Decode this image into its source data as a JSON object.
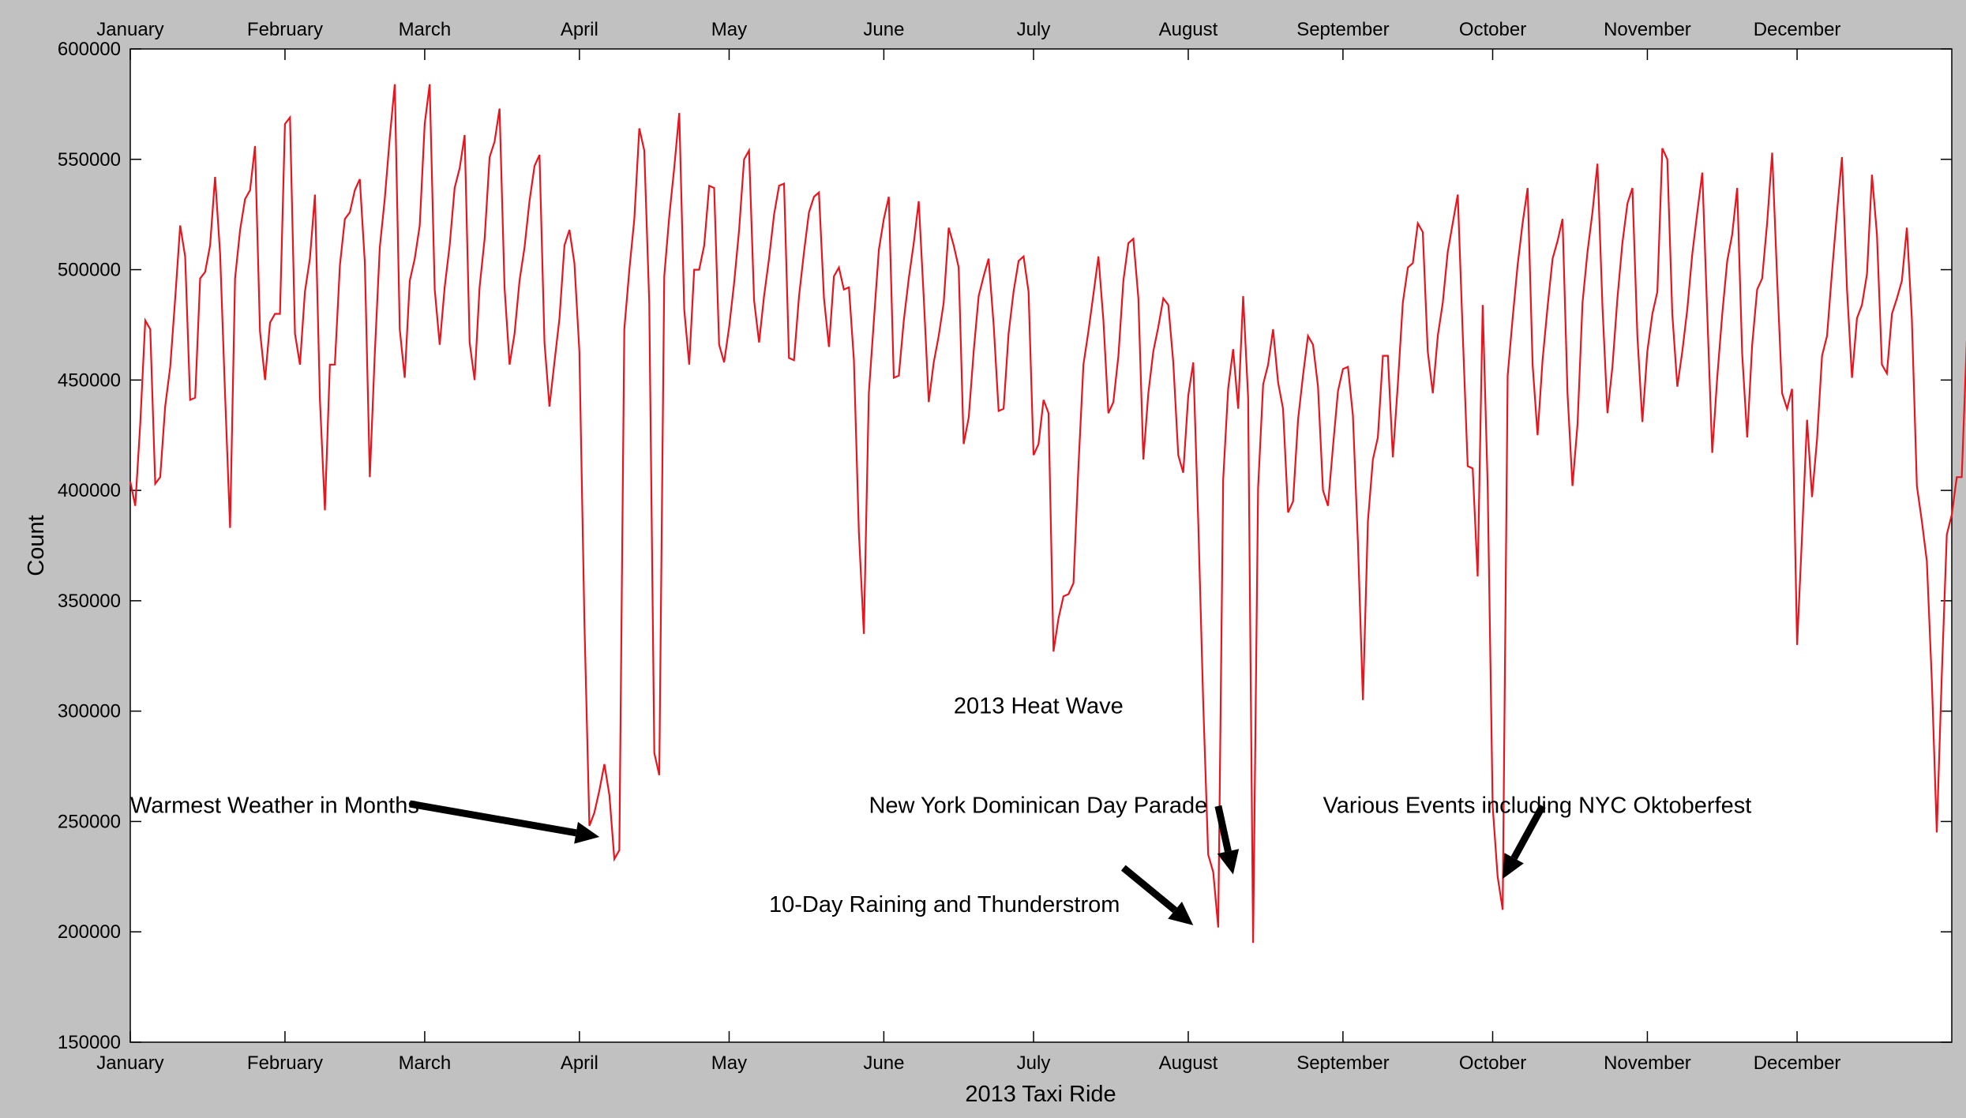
{
  "chart_data": {
    "type": "line",
    "title": "",
    "xlabel": "2013 Taxi Ride",
    "ylabel": "Count",
    "ylim": [
      150000,
      600000
    ],
    "yticks": [
      150000,
      200000,
      250000,
      300000,
      350000,
      400000,
      450000,
      500000,
      550000,
      600000
    ],
    "xlim": [
      1,
      366
    ],
    "months": [
      {
        "label": "January",
        "day": 1
      },
      {
        "label": "February",
        "day": 32
      },
      {
        "label": "March",
        "day": 60
      },
      {
        "label": "April",
        "day": 91
      },
      {
        "label": "May",
        "day": 121
      },
      {
        "label": "June",
        "day": 152
      },
      {
        "label": "July",
        "day": 182
      },
      {
        "label": "August",
        "day": 213
      },
      {
        "label": "September",
        "day": 244
      },
      {
        "label": "October",
        "day": 274
      },
      {
        "label": "November",
        "day": 305
      },
      {
        "label": "December",
        "day": 335
      }
    ],
    "grid": false,
    "series": [
      {
        "name": "",
        "color": "#e8141e",
        "values": [
          404000,
          393000,
          430000,
          477000,
          473000,
          403000,
          406000,
          438000,
          456000,
          487000,
          520000,
          506000,
          441000,
          442000,
          496000,
          499000,
          511000,
          542000,
          507000,
          443000,
          383000,
          496000,
          518000,
          532000,
          536000,
          556000,
          472000,
          450000,
          476000,
          480000,
          480000,
          566000,
          569000,
          471000,
          457000,
          490000,
          505000,
          534000,
          441000,
          391000,
          457000,
          457000,
          502000,
          523000,
          526000,
          536000,
          541000,
          503000,
          406000,
          462000,
          510000,
          532000,
          560000,
          584000,
          473000,
          451000,
          495000,
          505000,
          520000,
          566000,
          584000,
          491000,
          466000,
          492000,
          511000,
          537000,
          546000,
          561000,
          467000,
          450000,
          492000,
          514000,
          551000,
          558000,
          573000,
          492000,
          457000,
          471000,
          495000,
          510000,
          531000,
          547000,
          552000,
          467000,
          438000,
          458000,
          478000,
          511000,
          518000,
          503000,
          463000,
          340000,
          248000,
          254000,
          264000,
          276000,
          262000,
          233000,
          237000,
          473000,
          500000,
          523000,
          564000,
          554000,
          485000,
          281000,
          271000,
          497000,
          524000,
          546000,
          571000,
          482000,
          457000,
          500000,
          500000,
          511000,
          538000,
          537000,
          466000,
          458000,
          474000,
          494000,
          518000,
          550000,
          554000,
          486000,
          467000,
          488000,
          505000,
          525000,
          538000,
          539000,
          460000,
          459000,
          488000,
          508000,
          526000,
          533000,
          535000,
          487000,
          465000,
          497000,
          501000,
          491000,
          492000,
          459000,
          381000,
          335000,
          444000,
          477000,
          509000,
          523000,
          533000,
          451000,
          452000,
          477000,
          496000,
          512000,
          531000,
          487000,
          440000,
          458000,
          470000,
          485000,
          519000,
          511000,
          501000,
          421000,
          433000,
          463000,
          488000,
          497000,
          505000,
          475000,
          436000,
          437000,
          471000,
          490000,
          504000,
          506000,
          490000,
          416000,
          421000,
          441000,
          435000,
          327000,
          342000,
          352000,
          353000,
          358000,
          411000,
          457000,
          472000,
          489000,
          506000,
          477000,
          435000,
          440000,
          461000,
          495000,
          512000,
          514000,
          487000,
          414000,
          444000,
          463000,
          474000,
          487000,
          484000,
          458000,
          416000,
          408000,
          443000,
          458000,
          386000,
          304000,
          235000,
          227000,
          202000,
          405000,
          446000,
          464000,
          437000,
          488000,
          442000,
          195000,
          401000,
          448000,
          457000,
          473000,
          449000,
          437000,
          390000,
          395000,
          432000,
          452000,
          470000,
          466000,
          447000,
          400000,
          393000,
          420000,
          445000,
          455000,
          456000,
          434000,
          376000,
          305000,
          386000,
          414000,
          424000,
          461000,
          461000,
          415000,
          448000,
          485000,
          501000,
          503000,
          521000,
          517000,
          463000,
          444000,
          470000,
          485000,
          508000,
          521000,
          534000,
          471000,
          411000,
          410000,
          361000,
          484000,
          402000,
          257000,
          225000,
          210000,
          452000,
          478000,
          502000,
          521000,
          537000,
          457000,
          425000,
          459000,
          483000,
          505000,
          513000,
          523000,
          444000,
          402000,
          430000,
          485000,
          508000,
          526000,
          548000,
          483000,
          435000,
          456000,
          487000,
          512000,
          530000,
          537000,
          470000,
          431000,
          463000,
          480000,
          490000,
          555000,
          550000,
          480000,
          447000,
          463000,
          482000,
          507000,
          526000,
          544000,
          480000,
          417000,
          451000,
          480000,
          504000,
          516000,
          537000,
          462000,
          424000,
          466000,
          491000,
          496000,
          521000,
          553000,
          496000,
          444000,
          437000,
          446000,
          330000,
          380000,
          432000,
          397000,
          423000,
          461000,
          470000,
          499000,
          526000,
          551000,
          491000,
          451000,
          478000,
          484000,
          498000,
          543000,
          516000,
          457000,
          453000,
          480000,
          487000,
          495000,
          519000,
          478000,
          402000,
          386000,
          368000,
          314000,
          245000,
          317000,
          380000,
          389000,
          406000,
          406000,
          468000
        ]
      }
    ],
    "annotations": [
      {
        "text": "Warmest Weather in Months",
        "text_x_day": 1,
        "text_y": 254000,
        "tail_x_day": 57,
        "tail_y": 258000,
        "head_x_day": 95,
        "head_y": 243000
      },
      {
        "text": "2013 Heat Wave",
        "text_x_day": 166,
        "text_y": 299000
      },
      {
        "text": "New York Dominican Day Parade",
        "text_x_day": 149,
        "text_y": 254000,
        "tail_x_day": 219,
        "tail_y": 257000,
        "head_x_day": 222,
        "head_y": 226000
      },
      {
        "text": "10-Day Raining and Thunderstrom",
        "text_x_day": 129,
        "text_y": 209000,
        "tail_x_day": 200,
        "tail_y": 229000,
        "head_x_day": 214,
        "head_y": 203000
      },
      {
        "text": "Various Events including NYC Oktoberfest",
        "text_x_day": 240,
        "text_y": 254000,
        "tail_x_day": 284,
        "tail_y": 257000,
        "head_x_day": 276,
        "head_y": 224000
      }
    ]
  }
}
